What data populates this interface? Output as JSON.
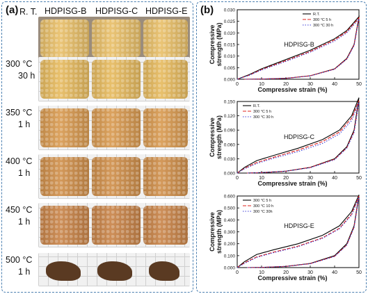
{
  "figure": {
    "panel_a_label": "(a)",
    "panel_b_label": "(b)",
    "columns": [
      "HDPISG-B",
      "HDPISG-C",
      "HDPISG-E"
    ],
    "rows": [
      {
        "cond": "R. T.",
        "time": ""
      },
      {
        "cond": "300 °C",
        "time": "30 h"
      },
      {
        "cond": "350 °C",
        "time": "1 h"
      },
      {
        "cond": "400 °C",
        "time": "1 h"
      },
      {
        "cond": "450 °C",
        "time": "1 h"
      },
      {
        "cond": "500 °C",
        "time": "1 h"
      }
    ],
    "photo_colors": [
      "#e9c06a",
      "#e7bb60",
      "#d99b52",
      "#d0904c",
      "#c9854a",
      "#5a3a22"
    ]
  },
  "chart_data": [
    {
      "type": "line",
      "annotation": "HDPISG-B",
      "xlabel": "Compressive strain (%)",
      "ylabel": "Compressive strength (MPa)",
      "xlim": [
        0,
        50
      ],
      "ylim": [
        0,
        0.03
      ],
      "xticks": [
        "0",
        "10",
        "20",
        "30",
        "40",
        "50"
      ],
      "yticks": [
        "0.000",
        "0.005",
        "0.010",
        "0.015",
        "0.020",
        "0.025",
        "0.030"
      ],
      "legend": [
        "R.T.",
        "300 °C 5 h",
        "300 °C 30 h"
      ],
      "legend_position": "top-right",
      "colors": [
        "#000000",
        "#e0201b",
        "#3b3bd6"
      ],
      "series": [
        {
          "name": "R.T.",
          "loading": [
            [
              0,
              0
            ],
            [
              5,
              0.002
            ],
            [
              10,
              0.0045
            ],
            [
              20,
              0.0085
            ],
            [
              30,
              0.0125
            ],
            [
              40,
              0.0175
            ],
            [
              45,
              0.021
            ],
            [
              50,
              0.027
            ]
          ],
          "unloading": [
            [
              50,
              0.027
            ],
            [
              48,
              0.015
            ],
            [
              45,
              0.009
            ],
            [
              40,
              0.0045
            ],
            [
              30,
              0.0015
            ],
            [
              20,
              0.0004
            ],
            [
              10,
              0.0001
            ],
            [
              3,
              0
            ]
          ]
        },
        {
          "name": "300 °C 5 h",
          "loading": [
            [
              0,
              0
            ],
            [
              5,
              0.0018
            ],
            [
              10,
              0.0042
            ],
            [
              20,
              0.008
            ],
            [
              30,
              0.012
            ],
            [
              40,
              0.017
            ],
            [
              45,
              0.0205
            ],
            [
              50,
              0.0265
            ]
          ],
          "unloading": [
            [
              50,
              0.0265
            ],
            [
              48,
              0.0148
            ],
            [
              45,
              0.0088
            ],
            [
              40,
              0.0044
            ],
            [
              30,
              0.0015
            ],
            [
              20,
              0.0004
            ],
            [
              10,
              0.0001
            ],
            [
              3,
              0
            ]
          ]
        },
        {
          "name": "300 °C 30 h",
          "loading": [
            [
              0,
              0
            ],
            [
              5,
              0.0017
            ],
            [
              10,
              0.004
            ],
            [
              20,
              0.0077
            ],
            [
              30,
              0.0117
            ],
            [
              40,
              0.0165
            ],
            [
              45,
              0.02
            ],
            [
              50,
              0.026
            ]
          ],
          "unloading": [
            [
              50,
              0.026
            ],
            [
              48,
              0.0145
            ],
            [
              45,
              0.0086
            ],
            [
              40,
              0.0043
            ],
            [
              30,
              0.0014
            ],
            [
              20,
              0.0004
            ],
            [
              10,
              0.0001
            ],
            [
              3,
              0
            ]
          ]
        }
      ]
    },
    {
      "type": "line",
      "annotation": "HDPISG-C",
      "xlabel": "Compressive strain (%)",
      "ylabel": "Compressive strength (MPa)",
      "xlim": [
        0,
        50
      ],
      "ylim": [
        0,
        0.15
      ],
      "xticks": [
        "0",
        "10",
        "20",
        "30",
        "40",
        "50"
      ],
      "yticks": [
        "0.000",
        "0.030",
        "0.060",
        "0.090",
        "0.120",
        "0.150"
      ],
      "legend": [
        "R.T.",
        "300 °C 5 h",
        "300 °C 30 h"
      ],
      "legend_position": "top-left",
      "colors": [
        "#000000",
        "#e0201b",
        "#3b3bd6"
      ],
      "series": [
        {
          "name": "R.T.",
          "loading": [
            [
              0,
              0
            ],
            [
              3,
              0.012
            ],
            [
              8,
              0.026
            ],
            [
              15,
              0.037
            ],
            [
              25,
              0.052
            ],
            [
              35,
              0.07
            ],
            [
              42,
              0.09
            ],
            [
              47,
              0.12
            ],
            [
              50,
              0.158
            ]
          ],
          "unloading": [
            [
              50,
              0.158
            ],
            [
              48,
              0.09
            ],
            [
              45,
              0.055
            ],
            [
              40,
              0.03
            ],
            [
              30,
              0.012
            ],
            [
              20,
              0.004
            ],
            [
              10,
              0.001
            ],
            [
              4,
              0
            ]
          ]
        },
        {
          "name": "300 °C 5 h",
          "loading": [
            [
              0,
              0
            ],
            [
              3,
              0.01
            ],
            [
              8,
              0.022
            ],
            [
              15,
              0.033
            ],
            [
              25,
              0.048
            ],
            [
              35,
              0.066
            ],
            [
              42,
              0.086
            ],
            [
              47,
              0.115
            ],
            [
              50,
              0.152
            ]
          ],
          "unloading": [
            [
              50,
              0.152
            ],
            [
              48,
              0.087
            ],
            [
              45,
              0.053
            ],
            [
              40,
              0.029
            ],
            [
              30,
              0.012
            ],
            [
              20,
              0.004
            ],
            [
              10,
              0.001
            ],
            [
              4,
              0
            ]
          ]
        },
        {
          "name": "300 °C 30 h",
          "loading": [
            [
              0,
              0
            ],
            [
              3,
              0.009
            ],
            [
              8,
              0.02
            ],
            [
              15,
              0.031
            ],
            [
              25,
              0.045
            ],
            [
              35,
              0.062
            ],
            [
              42,
              0.082
            ],
            [
              47,
              0.11
            ],
            [
              50,
              0.148
            ]
          ],
          "unloading": [
            [
              50,
              0.148
            ],
            [
              48,
              0.085
            ],
            [
              45,
              0.052
            ],
            [
              40,
              0.028
            ],
            [
              30,
              0.011
            ],
            [
              20,
              0.004
            ],
            [
              10,
              0.001
            ],
            [
              4,
              0
            ]
          ]
        }
      ]
    },
    {
      "type": "line",
      "annotation": "HDPISG-E",
      "xlabel": "Compressive strain (%)",
      "ylabel": "Compressive strength (MPa)",
      "xlim": [
        0,
        50
      ],
      "ylim": [
        0,
        0.6
      ],
      "xticks": [
        "0",
        "10",
        "20",
        "30",
        "40",
        "50"
      ],
      "yticks": [
        "0.000",
        "0.100",
        "0.200",
        "0.300",
        "0.400",
        "0.500",
        "0.600"
      ],
      "legend": [
        "300 °C 5 h",
        "300 °C 10 h",
        "300 °C 30h"
      ],
      "legend_position": "top-left",
      "colors": [
        "#000000",
        "#e0201b",
        "#3b3bd6"
      ],
      "series": [
        {
          "name": "300 °C 5 h",
          "loading": [
            [
              0,
              0
            ],
            [
              3,
              0.05
            ],
            [
              8,
              0.11
            ],
            [
              15,
              0.15
            ],
            [
              25,
              0.2
            ],
            [
              35,
              0.27
            ],
            [
              42,
              0.35
            ],
            [
              47,
              0.47
            ],
            [
              50,
              0.61
            ]
          ],
          "unloading": [
            [
              50,
              0.61
            ],
            [
              48,
              0.35
            ],
            [
              45,
              0.2
            ],
            [
              40,
              0.1
            ],
            [
              30,
              0.035
            ],
            [
              20,
              0.01
            ],
            [
              10,
              0.002
            ],
            [
              4,
              0
            ]
          ]
        },
        {
          "name": "300 °C 10 h",
          "loading": [
            [
              0,
              0
            ],
            [
              3,
              0.04
            ],
            [
              8,
              0.09
            ],
            [
              15,
              0.13
            ],
            [
              25,
              0.18
            ],
            [
              35,
              0.25
            ],
            [
              42,
              0.33
            ],
            [
              47,
              0.45
            ],
            [
              50,
              0.6
            ]
          ],
          "unloading": [
            [
              50,
              0.6
            ],
            [
              48,
              0.34
            ],
            [
              45,
              0.19
            ],
            [
              40,
              0.095
            ],
            [
              30,
              0.033
            ],
            [
              20,
              0.01
            ],
            [
              10,
              0.002
            ],
            [
              4,
              0
            ]
          ]
        },
        {
          "name": "300 °C 30h",
          "loading": [
            [
              0,
              0
            ],
            [
              3,
              0.035
            ],
            [
              8,
              0.085
            ],
            [
              15,
              0.125
            ],
            [
              25,
              0.175
            ],
            [
              35,
              0.245
            ],
            [
              42,
              0.325
            ],
            [
              47,
              0.44
            ],
            [
              50,
              0.59
            ]
          ],
          "unloading": [
            [
              50,
              0.59
            ],
            [
              48,
              0.335
            ],
            [
              45,
              0.188
            ],
            [
              40,
              0.093
            ],
            [
              30,
              0.032
            ],
            [
              20,
              0.01
            ],
            [
              10,
              0.002
            ],
            [
              4,
              0
            ]
          ]
        }
      ]
    }
  ]
}
